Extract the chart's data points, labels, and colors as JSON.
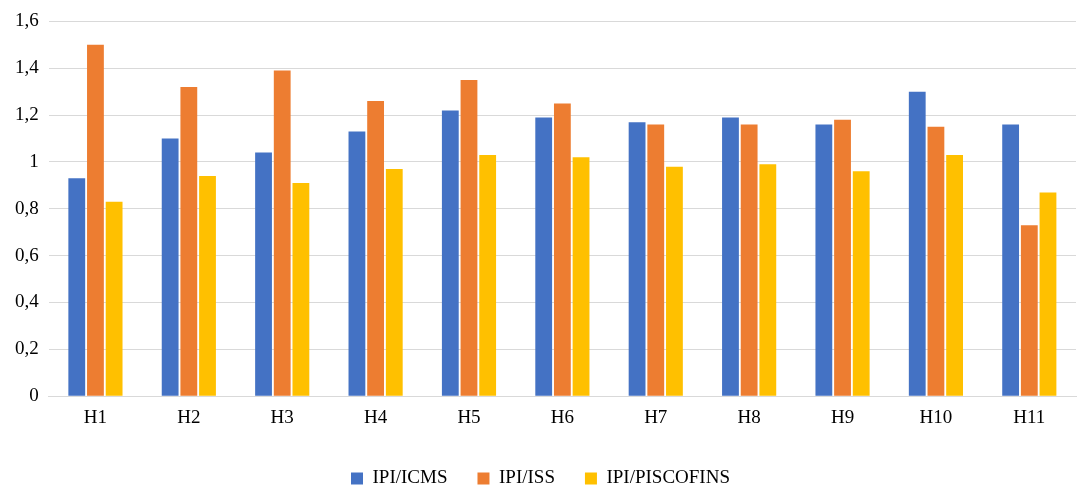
{
  "chart_data": {
    "type": "bar",
    "categories": [
      "H1",
      "H2",
      "H3",
      "H4",
      "H5",
      "H6",
      "H7",
      "H8",
      "H9",
      "H10",
      "H11"
    ],
    "series": [
      {
        "name": "IPI/ICMS",
        "color": "#4472c4",
        "values": [
          0.93,
          1.1,
          1.04,
          1.13,
          1.22,
          1.19,
          1.17,
          1.19,
          1.16,
          1.3,
          1.16
        ]
      },
      {
        "name": "IPI/ISS",
        "color": "#ed7d31",
        "values": [
          1.5,
          1.32,
          1.39,
          1.26,
          1.35,
          1.25,
          1.16,
          1.16,
          1.18,
          1.15,
          0.73
        ]
      },
      {
        "name": "IPI/PISCOFINS",
        "color": "#ffc000",
        "values": [
          0.83,
          0.94,
          0.91,
          0.97,
          1.03,
          1.02,
          0.98,
          0.99,
          0.96,
          1.03,
          0.87
        ]
      }
    ],
    "ylim": [
      0,
      1.6
    ],
    "yticks": [
      0,
      {
        "value": 0.2,
        "label": "0,2"
      },
      {
        "value": 0.4,
        "label": "0,4"
      },
      {
        "value": 0.6,
        "label": "0,6"
      },
      {
        "value": 0.8,
        "label": "0,8"
      },
      1,
      {
        "value": 1.2,
        "label": "1,2"
      },
      {
        "value": 1.4,
        "label": "1,4"
      },
      {
        "value": 1.6,
        "label": "1,6"
      }
    ],
    "grid": "y",
    "legend": "bottom"
  }
}
